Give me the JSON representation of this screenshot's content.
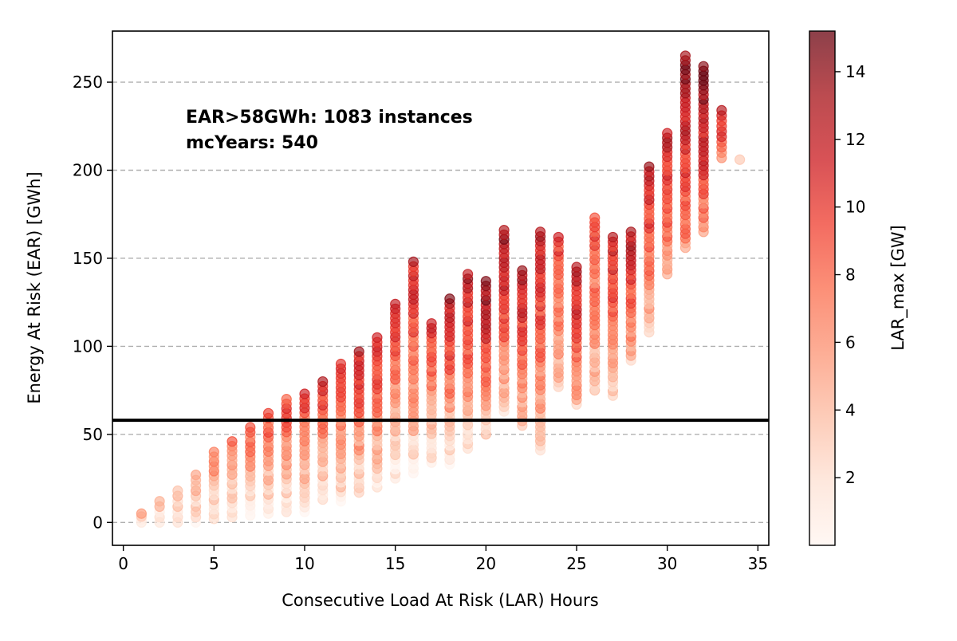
{
  "chart_data": {
    "type": "scatter",
    "xlabel": "Consecutive Load At Risk (LAR) Hours",
    "ylabel": "Energy At Risk (EAR) [GWh]",
    "xlim": [
      -0.6,
      35.6
    ],
    "ylim": [
      -13,
      279
    ],
    "xticks": [
      0,
      5,
      10,
      15,
      20,
      25,
      30,
      35
    ],
    "yticks": [
      0,
      50,
      100,
      150,
      200,
      250
    ],
    "grid": "y-dashed",
    "threshold_line": {
      "y": 58,
      "color": "#000000"
    },
    "annotation": {
      "line1": "EAR>58GWh: 1083 instances",
      "line2": "mcYears: 540"
    },
    "colorbar": {
      "label": "LAR_max [GW]",
      "range": [
        0,
        15.2
      ],
      "ticks": [
        2,
        4,
        6,
        8,
        10,
        12,
        14
      ],
      "colormap": "Reds",
      "alpha": 0.65
    },
    "points_per_hour": [
      {
        "x": 1,
        "ymin": 0,
        "ymax": 5,
        "cmin": 0.5,
        "cmax": 3.5
      },
      {
        "x": 2,
        "ymin": 0,
        "ymax": 12,
        "cmin": 0.5,
        "cmax": 3.5
      },
      {
        "x": 3,
        "ymin": 0,
        "ymax": 18,
        "cmin": 0.5,
        "cmax": 4.5
      },
      {
        "x": 4,
        "ymin": 0,
        "ymax": 27,
        "cmin": 0.5,
        "cmax": 5.5
      },
      {
        "x": 5,
        "ymin": 2,
        "ymax": 40,
        "cmin": 0.5,
        "cmax": 7
      },
      {
        "x": 6,
        "ymin": 3,
        "ymax": 46,
        "cmin": 0.5,
        "cmax": 7
      },
      {
        "x": 7,
        "ymin": 4,
        "ymax": 54,
        "cmin": 0.5,
        "cmax": 9
      },
      {
        "x": 8,
        "ymin": 5,
        "ymax": 62,
        "cmin": 0.5,
        "cmax": 9
      },
      {
        "x": 9,
        "ymin": 6,
        "ymax": 70,
        "cmin": 0.5,
        "cmax": 10
      },
      {
        "x": 10,
        "ymin": 6,
        "ymax": 73,
        "cmin": 0.5,
        "cmax": 10
      },
      {
        "x": 11,
        "ymin": 13,
        "ymax": 80,
        "cmin": 1,
        "cmax": 11
      },
      {
        "x": 12,
        "ymin": 12,
        "ymax": 90,
        "cmin": 1,
        "cmax": 11
      },
      {
        "x": 13,
        "ymin": 17,
        "ymax": 97,
        "cmin": 1,
        "cmax": 12
      },
      {
        "x": 14,
        "ymin": 20,
        "ymax": 105,
        "cmin": 1,
        "cmax": 12
      },
      {
        "x": 15,
        "ymin": 25,
        "ymax": 124,
        "cmin": 0.5,
        "cmax": 11
      },
      {
        "x": 16,
        "ymin": 28,
        "ymax": 148,
        "cmin": 1,
        "cmax": 12
      },
      {
        "x": 17,
        "ymin": 34,
        "ymax": 113,
        "cmin": 1,
        "cmax": 11
      },
      {
        "x": 18,
        "ymin": 33,
        "ymax": 127,
        "cmin": 1,
        "cmax": 13
      },
      {
        "x": 19,
        "ymin": 42,
        "ymax": 141,
        "cmin": 1,
        "cmax": 13
      },
      {
        "x": 20,
        "ymin": 50,
        "ymax": 137,
        "cmin": 2,
        "cmax": 15
      },
      {
        "x": 21,
        "ymin": 63,
        "ymax": 166,
        "cmin": 3,
        "cmax": 14
      },
      {
        "x": 22,
        "ymin": 55,
        "ymax": 143,
        "cmin": 3,
        "cmax": 13
      },
      {
        "x": 23,
        "ymin": 41,
        "ymax": 165,
        "cmin": 3,
        "cmax": 12
      },
      {
        "x": 24,
        "ymin": 77,
        "ymax": 162,
        "cmin": 3,
        "cmax": 10
      },
      {
        "x": 25,
        "ymin": 67,
        "ymax": 145,
        "cmin": 4,
        "cmax": 13
      },
      {
        "x": 26,
        "ymin": 75,
        "ymax": 173,
        "cmin": 3,
        "cmax": 10
      },
      {
        "x": 27,
        "ymin": 72,
        "ymax": 162,
        "cmin": 3,
        "cmax": 12
      },
      {
        "x": 28,
        "ymin": 92,
        "ymax": 165,
        "cmin": 4,
        "cmax": 13
      },
      {
        "x": 29,
        "ymin": 108,
        "ymax": 202,
        "cmin": 4,
        "cmax": 12
      },
      {
        "x": 30,
        "ymin": 141,
        "ymax": 221,
        "cmin": 5,
        "cmax": 12
      },
      {
        "x": 31,
        "ymin": 156,
        "ymax": 265,
        "cmin": 6,
        "cmax": 15
      },
      {
        "x": 32,
        "ymin": 165,
        "ymax": 259,
        "cmin": 6,
        "cmax": 15
      },
      {
        "x": 33,
        "ymin": 207,
        "ymax": 234,
        "cmin": 6,
        "cmax": 12
      },
      {
        "x": 34,
        "ymin": 206,
        "ymax": 206,
        "cmin": 5,
        "cmax": 5
      }
    ]
  }
}
